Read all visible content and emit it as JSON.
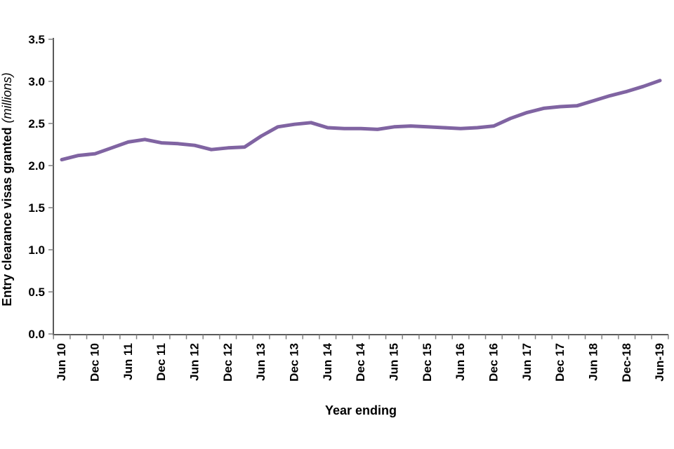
{
  "chart_data": {
    "type": "line",
    "title": "",
    "x_axis_label": "Year ending",
    "y_axis_label": "Entry clearance visas granted",
    "y_axis_unit": "(millions)",
    "x_tick_labels": [
      "Jun 10",
      "Dec 10",
      "Jun 11",
      "Dec 11",
      "Jun 12",
      "Dec 12",
      "Jun 13",
      "Dec 13",
      "Jun 14",
      "Dec 14",
      "Jun 15",
      "Dec 15",
      "Jun 16",
      "Dec 16",
      "Jun 17",
      "Dec 17",
      "Jun 18",
      "Dec-18",
      "Jun-19"
    ],
    "y_tick_labels": [
      "0.0",
      "0.5",
      "1.0",
      "1.5",
      "2.0",
      "2.5",
      "3.0",
      "3.5"
    ],
    "ylim": [
      0,
      3.5
    ],
    "x_frequency": "quarterly points, axis labelled every second point",
    "grid": "off",
    "legend": "none",
    "series": [
      {
        "name": "Entry clearance visas granted",
        "color": "#8064A2",
        "values": [
          2.07,
          2.12,
          2.14,
          2.21,
          2.28,
          2.31,
          2.27,
          2.26,
          2.24,
          2.19,
          2.21,
          2.22,
          2.35,
          2.46,
          2.49,
          2.51,
          2.45,
          2.44,
          2.44,
          2.43,
          2.46,
          2.47,
          2.46,
          2.45,
          2.44,
          2.45,
          2.47,
          2.56,
          2.63,
          2.68,
          2.7,
          2.71,
          2.77,
          2.83,
          2.88,
          2.94,
          3.01
        ]
      }
    ],
    "axis_color": "#595959",
    "tick_color": "#808080"
  }
}
